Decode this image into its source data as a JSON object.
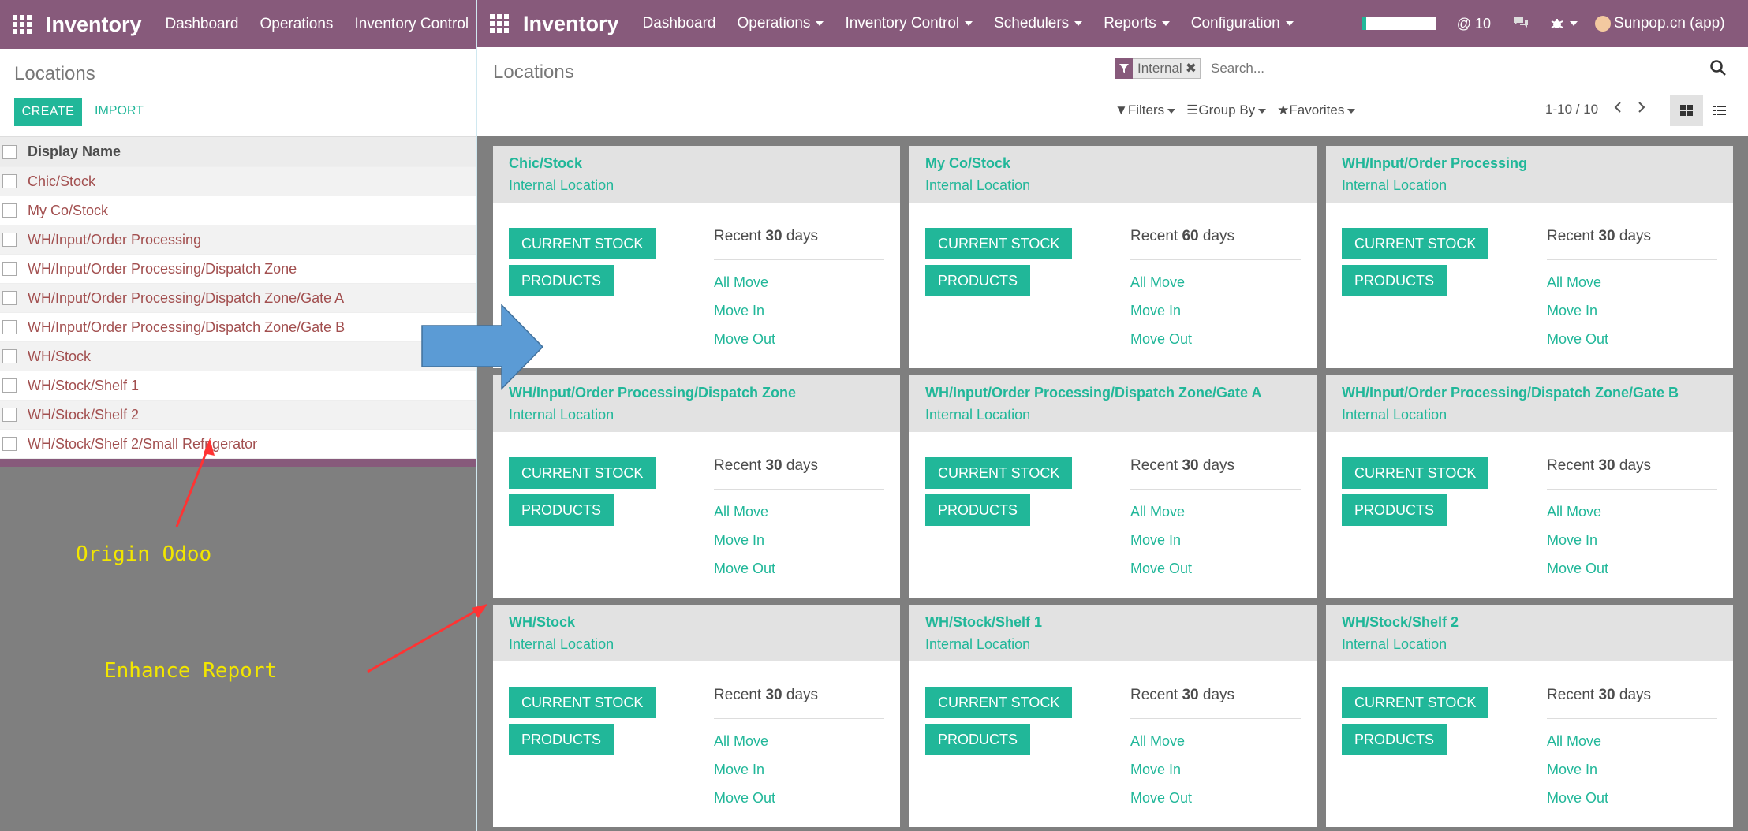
{
  "left": {
    "app_name": "Inventory",
    "menu": [
      "Dashboard",
      "Operations",
      "Inventory Control"
    ],
    "title": "Locations",
    "create_label": "CREATE",
    "import_label": "IMPORT",
    "column_header": "Display Name",
    "rows": [
      "Chic/Stock",
      "My Co/Stock",
      "WH/Input/Order Processing",
      "WH/Input/Order Processing/Dispatch Zone",
      "WH/Input/Order Processing/Dispatch Zone/Gate A",
      "WH/Input/Order Processing/Dispatch Zone/Gate B",
      "WH/Stock",
      "WH/Stock/Shelf 1",
      "WH/Stock/Shelf 2",
      "WH/Stock/Shelf 2/Small Refrigerator"
    ]
  },
  "annotations": {
    "origin": "Origin Odoo",
    "enhance": "Enhance Report"
  },
  "right": {
    "app_name": "Inventory",
    "menu": [
      "Dashboard",
      "Operations",
      "Inventory Control",
      "Schedulers",
      "Reports",
      "Configuration"
    ],
    "mentions": "@ 10",
    "user": "Sunpop.cn (app)",
    "title": "Locations",
    "facet": "Internal",
    "search_placeholder": "Search...",
    "filters": "Filters",
    "group_by": "Group By",
    "favorites": "Favorites",
    "pager": "1-10 / 10",
    "btn_stock": "CURRENT STOCK",
    "btn_products": "PRODUCTS",
    "link_all": "All Move",
    "link_in": "Move In",
    "link_out": "Move Out",
    "cards": [
      {
        "name": "Chic/Stock",
        "type": "Internal Location",
        "recent_pre": "Recent",
        "days": "30",
        "recent_post": "days"
      },
      {
        "name": "My Co/Stock",
        "type": "Internal Location",
        "recent_pre": "Recent",
        "days": "60",
        "recent_post": "days"
      },
      {
        "name": "WH/Input/Order Processing",
        "type": "Internal Location",
        "recent_pre": "Recent",
        "days": "30",
        "recent_post": "days"
      },
      {
        "name": "WH/Input/Order Processing/Dispatch Zone",
        "type": "Internal Location",
        "recent_pre": "Recent",
        "days": "30",
        "recent_post": "days"
      },
      {
        "name": "WH/Input/Order Processing/Dispatch Zone/Gate A",
        "type": "Internal Location",
        "recent_pre": "Recent",
        "days": "30",
        "recent_post": "days"
      },
      {
        "name": "WH/Input/Order Processing/Dispatch Zone/Gate B",
        "type": "Internal Location",
        "recent_pre": "Recent",
        "days": "30",
        "recent_post": "days"
      },
      {
        "name": "WH/Stock",
        "type": "Internal Location",
        "recent_pre": "Recent",
        "days": "30",
        "recent_post": "days"
      },
      {
        "name": "WH/Stock/Shelf 1",
        "type": "Internal Location",
        "recent_pre": "Recent",
        "days": "30",
        "recent_post": "days"
      },
      {
        "name": "WH/Stock/Shelf 2",
        "type": "Internal Location",
        "recent_pre": "Recent",
        "days": "30",
        "recent_post": "days"
      }
    ]
  },
  "colors": {
    "navbar": "#875a7b",
    "accent": "#21b799",
    "link_red": "#a24f4f",
    "annotation_text": "#f2e600",
    "arrow_blue": "#5b9bd5",
    "arrow_red": "#ff3333"
  }
}
